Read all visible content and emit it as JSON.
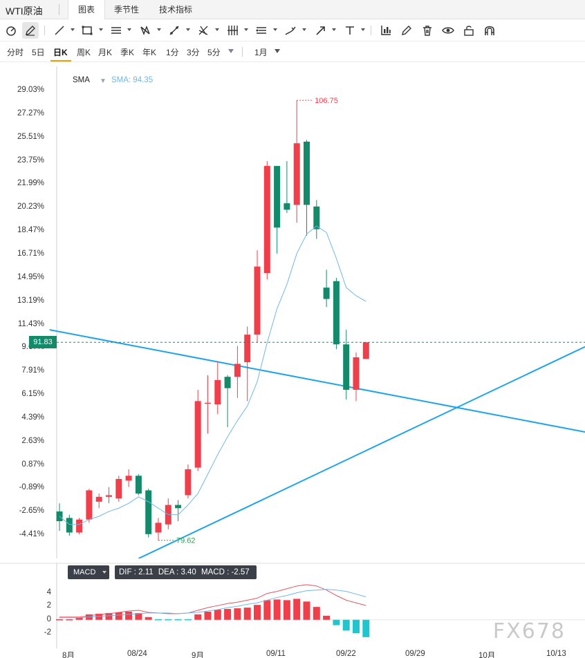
{
  "header": {
    "instrument_title": "WTI原油",
    "tabs": [
      {
        "label": "图表",
        "active": true
      },
      {
        "label": "季节性",
        "active": false
      },
      {
        "label": "技术指标",
        "active": false
      }
    ]
  },
  "toolbar": {
    "tools": [
      "magnet-icon",
      "pen-draw-icon",
      "trend-line-icon",
      "rectangle-icon",
      "parallel-channel-icon",
      "pattern-icon",
      "fork-icon",
      "gann-icon",
      "fibonacci-icon",
      "measure-icon",
      "brush-icon",
      "arrow-icon",
      "text-icon",
      "indicator-chart-icon",
      "pencil-icon",
      "trash-icon",
      "eye-icon",
      "lock-icon",
      "magnet-snap-icon"
    ]
  },
  "periods": {
    "items": [
      "分时",
      "5日",
      "日K",
      "周K",
      "月K",
      "季K",
      "年K",
      "1分",
      "3分",
      "5分"
    ],
    "active": "日K",
    "range_label": "1月"
  },
  "chart": {
    "indicator_name": "SMA",
    "indicator_value_label": "SMA: 94.35",
    "current_price_tag": "91.83",
    "high_annotation": "106.75",
    "low_annotation": "79.62",
    "colors": {
      "up": "#f03e4a",
      "down": "#138a6a",
      "sma": "#6fb7e8",
      "trendline": "#1aa3ee"
    }
  },
  "axis": {
    "y_labels": [
      "29.03%",
      "27.27%",
      "25.51%",
      "23.75%",
      "21.99%",
      "20.23%",
      "18.47%",
      "16.71%",
      "14.95%",
      "13.19%",
      "11.43%",
      "9.67%",
      "7.91%",
      "6.15%",
      "4.39%",
      "2.63%",
      "0.87%",
      "-0.89%",
      "-2.65%",
      "-4.41%"
    ],
    "x_labels": [
      "8月",
      "08/24",
      "9月",
      "09/11",
      "09/22",
      "09/29",
      "10月",
      "10/13"
    ]
  },
  "macd": {
    "selector_label": "MACD",
    "dif_label": "DIF : 2.11",
    "dea_label": "DEA : 3.40",
    "macd_label": "MACD : -2.57",
    "y_labels": [
      "4",
      "2",
      "0",
      "-2"
    ]
  },
  "chart_data": {
    "type": "candlestick",
    "candles": [
      {
        "o": 81.4,
        "h": 81.9,
        "l": 80.2,
        "c": 80.8
      },
      {
        "o": 81.0,
        "h": 81.2,
        "l": 79.9,
        "c": 80.1
      },
      {
        "o": 80.1,
        "h": 81.0,
        "l": 80.0,
        "c": 80.9
      },
      {
        "o": 80.9,
        "h": 82.8,
        "l": 80.7,
        "c": 82.7
      },
      {
        "o": 82.0,
        "h": 82.5,
        "l": 81.6,
        "c": 82.3
      },
      {
        "o": 82.3,
        "h": 82.9,
        "l": 81.9,
        "c": 82.4
      },
      {
        "o": 82.2,
        "h": 83.6,
        "l": 82.0,
        "c": 83.4
      },
      {
        "o": 83.3,
        "h": 84.0,
        "l": 82.9,
        "c": 83.6
      },
      {
        "o": 83.6,
        "h": 83.7,
        "l": 82.4,
        "c": 82.5
      },
      {
        "o": 82.7,
        "h": 82.8,
        "l": 79.8,
        "c": 80.0
      },
      {
        "o": 80.1,
        "h": 81.0,
        "l": 79.62,
        "c": 80.7
      },
      {
        "o": 80.6,
        "h": 82.2,
        "l": 80.3,
        "c": 81.8
      },
      {
        "o": 81.8,
        "h": 82.1,
        "l": 80.8,
        "c": 81.6
      },
      {
        "o": 82.4,
        "h": 84.3,
        "l": 82.2,
        "c": 84.0
      },
      {
        "o": 84.1,
        "h": 88.9,
        "l": 83.9,
        "c": 88.2
      },
      {
        "o": 88.1,
        "h": 89.8,
        "l": 86.2,
        "c": 88.1
      },
      {
        "o": 88.0,
        "h": 90.6,
        "l": 87.4,
        "c": 89.5
      },
      {
        "o": 89.7,
        "h": 89.8,
        "l": 86.6,
        "c": 89.0
      },
      {
        "o": 89.7,
        "h": 91.6,
        "l": 88.4,
        "c": 90.5
      },
      {
        "o": 90.6,
        "h": 92.8,
        "l": 88.2,
        "c": 92.3
      },
      {
        "o": 92.3,
        "h": 97.5,
        "l": 91.8,
        "c": 96.5
      },
      {
        "o": 96.1,
        "h": 103.0,
        "l": 95.7,
        "c": 102.7
      },
      {
        "o": 102.7,
        "h": 102.4,
        "l": 97.3,
        "c": 98.9
      },
      {
        "o": 100.4,
        "h": 103.0,
        "l": 99.8,
        "c": 100.0
      },
      {
        "o": 100.3,
        "h": 106.75,
        "l": 99.2,
        "c": 104.1
      },
      {
        "o": 104.2,
        "h": 104.3,
        "l": 98.4,
        "c": 100.3
      },
      {
        "o": 100.2,
        "h": 100.6,
        "l": 98.2,
        "c": 98.8
      },
      {
        "o": 95.2,
        "h": 96.3,
        "l": 94.0,
        "c": 94.5
      },
      {
        "o": 95.6,
        "h": 95.8,
        "l": 91.4,
        "c": 91.7
      },
      {
        "o": 91.7,
        "h": 92.6,
        "l": 88.3,
        "c": 88.9
      },
      {
        "o": 88.9,
        "h": 91.2,
        "l": 88.2,
        "c": 90.9
      },
      {
        "o": 90.8,
        "h": 91.6,
        "l": 91.0,
        "c": 91.83
      }
    ],
    "sma": [
      81.1,
      80.6,
      80.6,
      80.9,
      81.1,
      81.4,
      81.6,
      81.9,
      82.3,
      82.0,
      81.6,
      81.2,
      81.2,
      81.8,
      82.5,
      83.7,
      84.9,
      86.0,
      87.0,
      87.9,
      89.4,
      91.8,
      93.9,
      95.4,
      97.3,
      98.5,
      99.0,
      98.6,
      97.0,
      95.2,
      94.7,
      94.35
    ],
    "macd_hist": [
      0.1,
      0.2,
      0.3,
      0.8,
      0.9,
      1.0,
      1.1,
      1.2,
      1.0,
      0.4,
      -0.2,
      -0.2,
      -0.2,
      -0.1,
      0.8,
      1.2,
      1.5,
      1.6,
      1.7,
      1.8,
      2.2,
      2.9,
      3.0,
      2.9,
      3.1,
      2.7,
      1.9,
      0.6,
      -0.8,
      -1.6,
      -2.0,
      -2.57
    ],
    "macd_dif": [
      0.4,
      0.4,
      0.4,
      0.6,
      0.8,
      0.9,
      1.1,
      1.3,
      1.4,
      1.1,
      1.0,
      0.9,
      0.9,
      1.0,
      1.4,
      1.8,
      2.1,
      2.4,
      2.6,
      2.9,
      3.2,
      3.9,
      4.2,
      4.6,
      5.0,
      5.2,
      5.0,
      4.4,
      3.6,
      2.9,
      2.5,
      2.11
    ],
    "macd_dea": [
      0.3,
      0.3,
      0.3,
      0.4,
      0.5,
      0.6,
      0.7,
      0.8,
      0.9,
      1.0,
      1.0,
      1.0,
      0.9,
      1.0,
      1.1,
      1.3,
      1.5,
      1.8,
      2.0,
      2.3,
      2.5,
      2.9,
      3.3,
      3.6,
      4.0,
      4.3,
      4.4,
      4.5,
      4.4,
      4.2,
      3.8,
      3.4
    ],
    "y_range": [
      78.5,
      108.5
    ],
    "macd_range": [
      -3.2,
      5.8
    ],
    "trendlines": [
      {
        "from": {
          "i": -1,
          "p": 92.6
        },
        "to": {
          "i": 54,
          "p": 86.2
        }
      },
      {
        "from": {
          "i": 8,
          "p": 78.5
        },
        "to": {
          "i": 54,
          "p": 91.8
        }
      }
    ]
  }
}
